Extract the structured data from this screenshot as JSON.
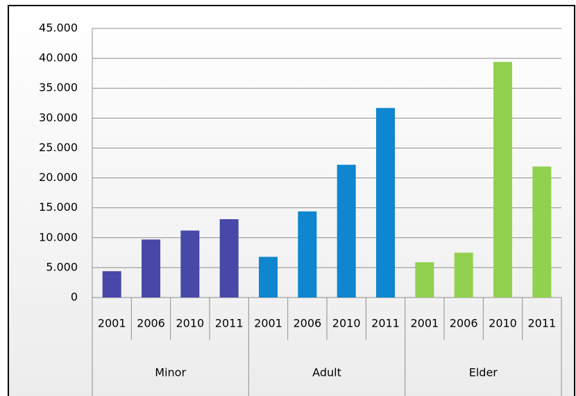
{
  "chart_data": {
    "type": "bar",
    "groups": [
      {
        "label": "Minor",
        "color": "#4848a8",
        "categories": [
          "2001",
          "2006",
          "2010",
          "2011"
        ],
        "values": [
          4400,
          9700,
          11200,
          13100
        ]
      },
      {
        "label": "Adult",
        "color": "#0e86d0",
        "categories": [
          "2001",
          "2006",
          "2010",
          "2011"
        ],
        "values": [
          6800,
          14400,
          22200,
          31700
        ]
      },
      {
        "label": "Elder",
        "color": "#92d050",
        "categories": [
          "2001",
          "2006",
          "2010",
          "2011"
        ],
        "values": [
          5900,
          7500,
          39400,
          21900
        ]
      }
    ],
    "ylim": [
      0,
      45000
    ],
    "yticks": [
      0,
      {
        "value": 5000,
        "label": "5.000"
      },
      {
        "value": 10000,
        "label": "10.000"
      },
      {
        "value": 15000,
        "label": "15.000"
      },
      {
        "value": 20000,
        "label": "20.000"
      },
      {
        "value": 25000,
        "label": "25.000"
      },
      {
        "value": 30000,
        "label": "30.000"
      },
      {
        "value": 35000,
        "label": "35.000"
      },
      {
        "value": 40000,
        "label": "40.000"
      },
      {
        "value": 45000,
        "label": "45.000"
      }
    ],
    "grid": true
  }
}
